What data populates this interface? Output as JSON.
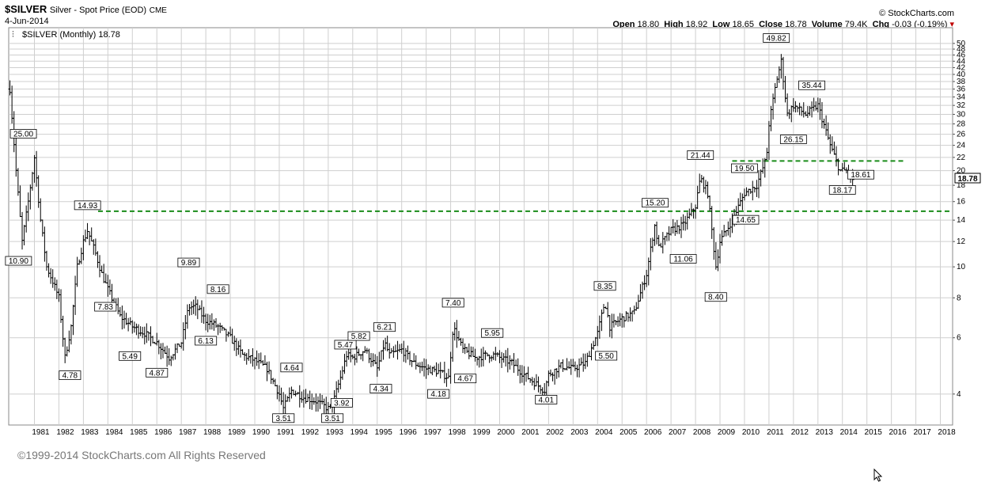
{
  "header": {
    "symbol": "$SILVER",
    "description": "Silver - Spot Price (EOD)",
    "exchange": "CME",
    "date": "4-Jun-2014",
    "brand": "© StockCharts.com",
    "open_label": "Open",
    "open_value": "18.80",
    "high_label": "High",
    "high_value": "18.92",
    "low_label": "Low",
    "low_value": "18.65",
    "close_label": "Close",
    "close_value": "18.78",
    "volume_label": "Volume",
    "volume_value": "79.4K",
    "chg_label": "Chg",
    "chg_value": "-0.03 (-0.19%)"
  },
  "legend": {
    "text": "$SILVER (Monthly) 18.78"
  },
  "last_price_tag": "18.78",
  "copyright": "©1999-2014 StockCharts.com All Rights Reserved",
  "chart_data": {
    "type": "line",
    "subtype": "monthly OHLC bars",
    "y_scale": "log",
    "ylim": [
      3.2,
      56
    ],
    "xlim": [
      1979.95,
      2018.5
    ],
    "grid": true,
    "x_ticks": [
      "1981",
      "1982",
      "1983",
      "1984",
      "1985",
      "1986",
      "1987",
      "1988",
      "1989",
      "1990",
      "1991",
      "1992",
      "1993",
      "1994",
      "1995",
      "1996",
      "1997",
      "1998",
      "1999",
      "2000",
      "2001",
      "2002",
      "2003",
      "2004",
      "2005",
      "2006",
      "2007",
      "2008",
      "2009",
      "2010",
      "2011",
      "2012",
      "2013",
      "2014",
      "2015",
      "2016",
      "2017",
      "2018"
    ],
    "y_ticks": [
      4,
      6,
      8,
      10,
      12,
      14,
      16,
      18,
      20,
      22,
      24,
      26,
      28,
      30,
      32,
      34,
      36,
      38,
      40,
      42,
      44,
      46,
      48,
      50
    ],
    "series": [
      {
        "x": [
          1980.0,
          1980.25,
          1980.5,
          1980.75,
          1981.0,
          1981.25,
          1981.5,
          1981.75,
          1982.0,
          1982.25,
          1982.5,
          1982.75,
          1983.0,
          1983.17,
          1983.5,
          1983.75,
          1984.0,
          1984.5,
          1985.0,
          1985.5,
          1986.0,
          1986.5,
          1987.0,
          1987.3,
          1987.6,
          1988.0,
          1988.5,
          1989.0,
          1989.5,
          1990.0,
          1990.5,
          1991.0,
          1991.17,
          1991.5,
          1992.0,
          1992.5,
          1993.0,
          1993.17,
          1993.5,
          1993.75,
          1994.0,
          1994.5,
          1995.0,
          1995.3,
          1995.5,
          1996.0,
          1996.5,
          1997.0,
          1997.5,
          1997.92,
          1998.1,
          1998.5,
          1999.0,
          1999.5,
          1999.8,
          2000.0,
          2000.5,
          2001.0,
          2001.5,
          2001.83,
          2002.0,
          2002.5,
          2003.0,
          2003.5,
          2004.0,
          2004.3,
          2004.5,
          2005.0,
          2005.5,
          2006.0,
          2006.33,
          2006.5,
          2007.0,
          2007.5,
          2008.0,
          2008.2,
          2008.5,
          2008.83,
          2009.0,
          2009.5,
          2010.0,
          2010.5,
          2010.9,
          2011.0,
          2011.3,
          2011.5,
          2011.75,
          2012.0,
          2012.5,
          2013.0,
          2013.5,
          2013.9,
          2014.0,
          2014.2,
          2014.42
        ],
        "values": [
          36,
          20,
          12,
          16,
          22,
          14,
          10,
          9,
          8,
          5.2,
          6.5,
          10,
          12,
          13,
          11,
          9.5,
          8.5,
          7,
          6.5,
          6.2,
          5.8,
          5.2,
          5.8,
          7.5,
          7.5,
          6.8,
          6.5,
          6.0,
          5.3,
          5.1,
          4.8,
          4.0,
          3.6,
          4.1,
          3.9,
          3.8,
          3.6,
          3.7,
          4.5,
          5.3,
          5.2,
          5.5,
          4.8,
          5.8,
          5.3,
          5.5,
          5.0,
          4.8,
          4.7,
          4.5,
          6.5,
          5.5,
          5.2,
          5.3,
          5.3,
          5.2,
          5.0,
          4.6,
          4.3,
          4.1,
          4.6,
          4.9,
          4.8,
          5.0,
          6.2,
          7.8,
          6.5,
          6.9,
          7.2,
          9.5,
          13.5,
          11.5,
          13.0,
          13.5,
          15.5,
          19,
          17,
          10,
          12,
          14,
          17,
          18,
          22,
          28,
          38,
          44,
          30,
          32,
          30,
          32,
          24,
          20,
          20,
          20,
          18.78
        ]
      }
    ],
    "data_labels": [
      {
        "x": 1980.35,
        "y": 10.9,
        "text": "10.90"
      },
      {
        "x": 1980.55,
        "y": 25.0,
        "text": "25.00"
      },
      {
        "x": 1982.45,
        "y": 4.78,
        "text": "4.78"
      },
      {
        "x": 1983.17,
        "y": 14.93,
        "text": "14.93"
      },
      {
        "x": 1983.9,
        "y": 7.83,
        "text": "7.83"
      },
      {
        "x": 1984.9,
        "y": 5.49,
        "text": "5.49"
      },
      {
        "x": 1986.0,
        "y": 4.87,
        "text": "4.87"
      },
      {
        "x": 1987.3,
        "y": 9.89,
        "text": "9.89"
      },
      {
        "x": 1988.0,
        "y": 6.13,
        "text": "6.13"
      },
      {
        "x": 1988.5,
        "y": 8.16,
        "text": "8.16"
      },
      {
        "x": 1991.17,
        "y": 3.51,
        "text": "3.51"
      },
      {
        "x": 1991.5,
        "y": 4.64,
        "text": "4.64"
      },
      {
        "x": 1993.17,
        "y": 3.51,
        "text": "3.51"
      },
      {
        "x": 1993.55,
        "y": 3.92,
        "text": "3.92"
      },
      {
        "x": 1993.7,
        "y": 5.47,
        "text": "5.47"
      },
      {
        "x": 1994.25,
        "y": 5.82,
        "text": "5.82"
      },
      {
        "x": 1995.15,
        "y": 4.34,
        "text": "4.34"
      },
      {
        "x": 1995.3,
        "y": 6.21,
        "text": "6.21"
      },
      {
        "x": 1997.5,
        "y": 4.18,
        "text": "4.18"
      },
      {
        "x": 1998.1,
        "y": 7.4,
        "text": "7.40"
      },
      {
        "x": 1998.6,
        "y": 4.67,
        "text": "4.67"
      },
      {
        "x": 1999.7,
        "y": 5.95,
        "text": "5.95"
      },
      {
        "x": 2001.9,
        "y": 4.01,
        "text": "4.01"
      },
      {
        "x": 2004.3,
        "y": 8.35,
        "text": "8.35"
      },
      {
        "x": 2004.35,
        "y": 5.5,
        "text": "5.50"
      },
      {
        "x": 2006.35,
        "y": 15.2,
        "text": "15.20"
      },
      {
        "x": 2007.5,
        "y": 11.06,
        "text": "11.06"
      },
      {
        "x": 2008.2,
        "y": 21.44,
        "text": "21.44"
      },
      {
        "x": 2008.83,
        "y": 8.4,
        "text": "8.40"
      },
      {
        "x": 2010.0,
        "y": 19.5,
        "text": "19.50"
      },
      {
        "x": 2010.05,
        "y": 14.65,
        "text": "14.65"
      },
      {
        "x": 2011.3,
        "y": 49.82,
        "text": "49.82"
      },
      {
        "x": 2012.0,
        "y": 26.15,
        "text": "26.15"
      },
      {
        "x": 2012.75,
        "y": 35.44,
        "text": "35.44"
      },
      {
        "x": 2014.0,
        "y": 18.17,
        "text": "18.17"
      },
      {
        "x": 2014.75,
        "y": 18.61,
        "text": "18.61"
      }
    ],
    "reference_lines": [
      {
        "x1": 1983.6,
        "x2": 2018.5,
        "y": 14.93,
        "style": "dashed",
        "color": "#1a8c1a"
      },
      {
        "x1": 2009.5,
        "x2": 2016.6,
        "y": 21.44,
        "style": "dashed",
        "color": "#1a8c1a"
      }
    ]
  }
}
